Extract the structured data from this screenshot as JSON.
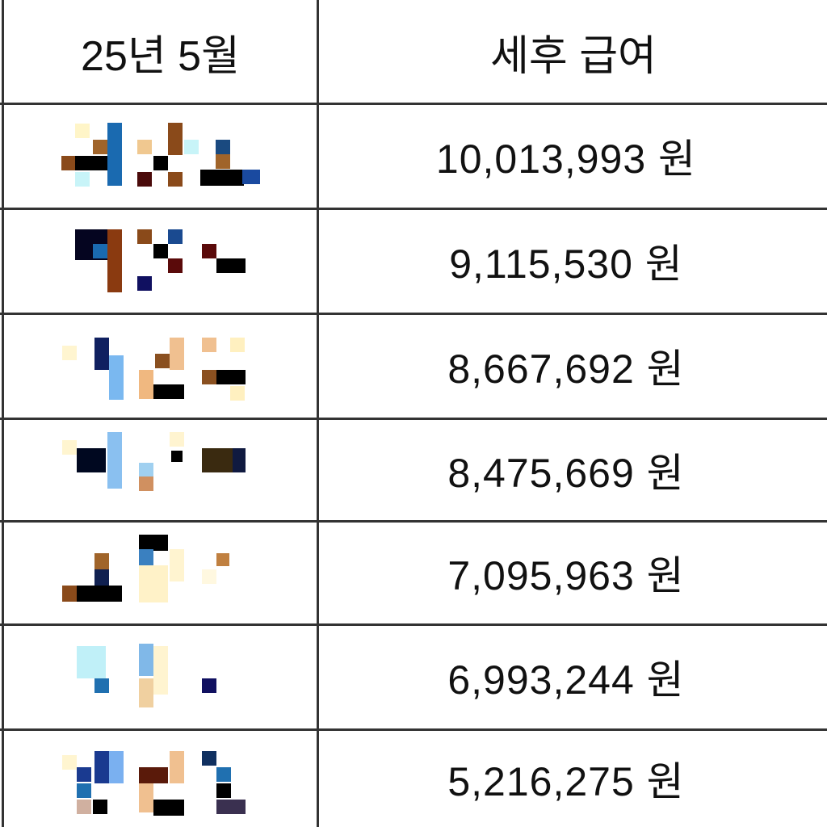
{
  "table": {
    "headers": [
      "25년 5월",
      "세후 급여"
    ],
    "unit": "원",
    "rows": [
      {
        "name_redacted": true,
        "salary": "10,013,993 원"
      },
      {
        "name_redacted": true,
        "salary": "9,115,530 원"
      },
      {
        "name_redacted": true,
        "salary": "8,667,692 원"
      },
      {
        "name_redacted": true,
        "salary": "8,475,669 원"
      },
      {
        "name_redacted": true,
        "salary": "7,095,963 원"
      },
      {
        "name_redacted": true,
        "salary": "6,993,244 원"
      },
      {
        "name_redacted": true,
        "salary": "5,216,275 원"
      }
    ]
  }
}
